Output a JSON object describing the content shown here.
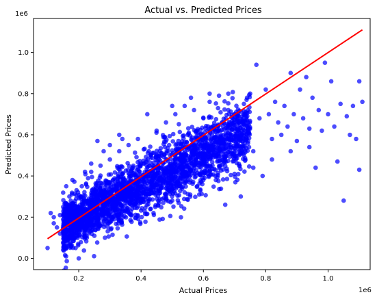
{
  "chart_data": {
    "type": "scatter",
    "title": "Actual vs. Predicted Prices",
    "xlabel": "Actual Prices",
    "ylabel": "Predicted Prices",
    "x_scale_label": "1e6",
    "y_scale_label": "1e6",
    "xlim": [
      0.055,
      1.135
    ],
    "ylim": [
      -0.055,
      1.165
    ],
    "x_ticks": [
      0.2,
      0.4,
      0.6,
      0.8,
      1.0
    ],
    "x_tick_labels": [
      "0.2",
      "0.4",
      "0.6",
      "0.8",
      "1.0"
    ],
    "y_ticks": [
      0.0,
      0.2,
      0.4,
      0.6,
      0.8,
      1.0
    ],
    "y_tick_labels": [
      "0.0",
      "0.2",
      "0.4",
      "0.6",
      "0.8",
      "1.0"
    ],
    "grid": false,
    "legend": "none",
    "point_color": "#0000ff",
    "line_color": "#ff0000",
    "reference_line": {
      "x": [
        0.1,
        1.11
      ],
      "y": [
        0.095,
        1.11
      ]
    },
    "points": [
      [
        0.1,
        0.05
      ],
      [
        0.12,
        0.2
      ],
      [
        0.13,
        0.15
      ],
      [
        0.14,
        0.12
      ],
      [
        0.15,
        0.25
      ],
      [
        0.16,
        0.18
      ],
      [
        0.17,
        0.3
      ],
      [
        0.18,
        0.1
      ],
      [
        0.19,
        0.05
      ],
      [
        0.2,
        0.0
      ],
      [
        0.18,
        0.22
      ],
      [
        0.21,
        0.35
      ],
      [
        0.22,
        0.28
      ],
      [
        0.23,
        0.19
      ],
      [
        0.24,
        0.42
      ],
      [
        0.25,
        0.31
      ],
      [
        0.26,
        0.24
      ],
      [
        0.27,
        0.45
      ],
      [
        0.28,
        0.33
      ],
      [
        0.29,
        0.27
      ],
      [
        0.3,
        0.48
      ],
      [
        0.31,
        0.38
      ],
      [
        0.32,
        0.26
      ],
      [
        0.33,
        0.52
      ],
      [
        0.34,
        0.41
      ],
      [
        0.35,
        0.3
      ],
      [
        0.36,
        0.55
      ],
      [
        0.37,
        0.43
      ],
      [
        0.38,
        0.34
      ],
      [
        0.39,
        0.58
      ],
      [
        0.4,
        0.46
      ],
      [
        0.41,
        0.37
      ],
      [
        0.42,
        0.7
      ],
      [
        0.43,
        0.5
      ],
      [
        0.44,
        0.4
      ],
      [
        0.45,
        0.62
      ],
      [
        0.46,
        0.52
      ],
      [
        0.47,
        0.36
      ],
      [
        0.48,
        0.66
      ],
      [
        0.49,
        0.55
      ],
      [
        0.5,
        0.42
      ],
      [
        0.51,
        0.7
      ],
      [
        0.52,
        0.57
      ],
      [
        0.53,
        0.45
      ],
      [
        0.54,
        0.74
      ],
      [
        0.55,
        0.6
      ],
      [
        0.56,
        0.48
      ],
      [
        0.57,
        0.72
      ],
      [
        0.58,
        0.62
      ],
      [
        0.59,
        0.33
      ],
      [
        0.6,
        0.68
      ],
      [
        0.61,
        0.55
      ],
      [
        0.62,
        0.76
      ],
      [
        0.63,
        0.64
      ],
      [
        0.64,
        0.5
      ],
      [
        0.65,
        0.79
      ],
      [
        0.66,
        0.66
      ],
      [
        0.67,
        0.26
      ],
      [
        0.68,
        0.72
      ],
      [
        0.69,
        0.58
      ],
      [
        0.7,
        0.7
      ],
      [
        0.71,
        0.62
      ],
      [
        0.72,
        0.3
      ],
      [
        0.73,
        0.75
      ],
      [
        0.74,
        0.64
      ],
      [
        0.75,
        0.8
      ],
      [
        0.76,
        0.52
      ],
      [
        0.77,
        0.94
      ],
      [
        0.78,
        0.68
      ],
      [
        0.79,
        0.4
      ],
      [
        0.8,
        0.82
      ],
      [
        0.81,
        0.7
      ],
      [
        0.82,
        0.58
      ],
      [
        0.83,
        0.76
      ],
      [
        0.84,
        0.66
      ],
      [
        0.85,
        0.6
      ],
      [
        0.86,
        0.74
      ],
      [
        0.87,
        0.64
      ],
      [
        0.88,
        0.9
      ],
      [
        0.89,
        0.7
      ],
      [
        0.9,
        0.57
      ],
      [
        0.91,
        0.82
      ],
      [
        0.92,
        0.68
      ],
      [
        0.93,
        0.88
      ],
      [
        0.94,
        0.63
      ],
      [
        0.95,
        0.78
      ],
      [
        0.96,
        0.44
      ],
      [
        0.97,
        0.72
      ],
      [
        0.98,
        0.62
      ],
      [
        0.99,
        0.95
      ],
      [
        1.0,
        0.7
      ],
      [
        1.01,
        0.86
      ],
      [
        1.02,
        0.64
      ],
      [
        1.03,
        0.47
      ],
      [
        1.04,
        0.75
      ],
      [
        1.05,
        0.28
      ],
      [
        1.06,
        0.69
      ],
      [
        1.07,
        0.6
      ],
      [
        1.08,
        0.74
      ],
      [
        1.09,
        0.58
      ],
      [
        1.1,
        0.43
      ],
      [
        1.1,
        0.86
      ],
      [
        1.11,
        0.76
      ],
      [
        0.26,
        0.57
      ],
      [
        0.33,
        0.6
      ],
      [
        0.5,
        0.74
      ],
      [
        0.56,
        0.78
      ],
      [
        0.62,
        0.8
      ],
      [
        0.68,
        0.8
      ],
      [
        0.74,
        0.78
      ],
      [
        0.44,
        0.22
      ],
      [
        0.5,
        0.28
      ],
      [
        0.54,
        0.32
      ],
      [
        0.58,
        0.35
      ],
      [
        0.64,
        0.38
      ],
      [
        0.7,
        0.41
      ],
      [
        0.76,
        0.44
      ],
      [
        0.82,
        0.48
      ],
      [
        0.88,
        0.52
      ],
      [
        0.94,
        0.54
      ],
      [
        0.22,
        0.42
      ],
      [
        0.24,
        0.46
      ],
      [
        0.28,
        0.52
      ],
      [
        0.3,
        0.55
      ],
      [
        0.34,
        0.58
      ],
      [
        0.16,
        0.35
      ],
      [
        0.18,
        0.38
      ],
      [
        0.14,
        0.21
      ],
      [
        0.12,
        0.17
      ],
      [
        0.11,
        0.22
      ],
      [
        0.2,
        0.15
      ],
      [
        0.22,
        0.13
      ],
      [
        0.24,
        0.17
      ],
      [
        0.26,
        0.2
      ],
      [
        0.28,
        0.18
      ],
      [
        0.3,
        0.22
      ],
      [
        0.32,
        0.21
      ],
      [
        0.34,
        0.24
      ],
      [
        0.36,
        0.27
      ],
      [
        0.38,
        0.29
      ],
      [
        0.4,
        0.3
      ],
      [
        0.42,
        0.31
      ],
      [
        0.46,
        0.33
      ],
      [
        0.48,
        0.34
      ],
      [
        0.52,
        0.36
      ]
    ],
    "cluster": {
      "x_range": [
        0.15,
        0.75
      ],
      "slope": 0.78,
      "intercept": 0.035,
      "spread": 0.07,
      "count": 2600
    }
  }
}
